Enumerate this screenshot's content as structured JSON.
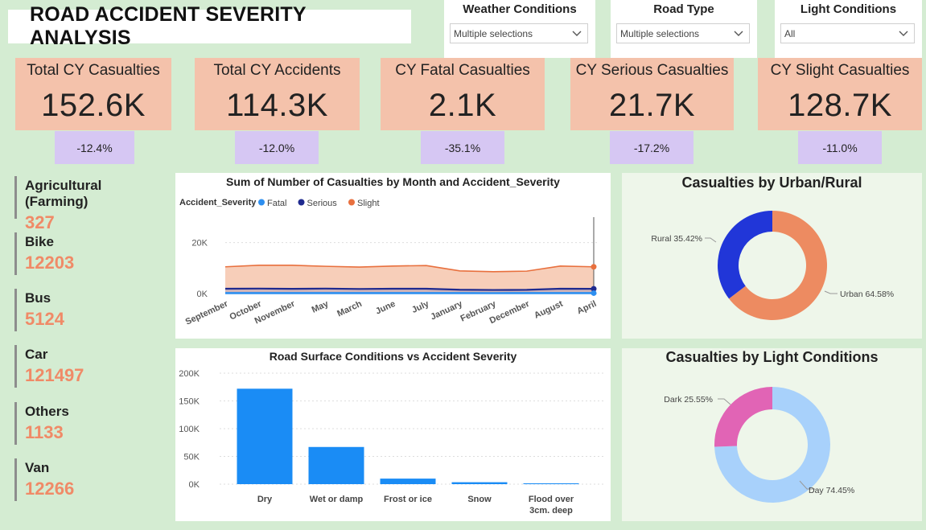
{
  "title": "ROAD ACCIDENT SEVERITY ANALYSIS",
  "slicers": [
    {
      "title": "Weather Conditions",
      "value": "Multiple selections"
    },
    {
      "title": "Road Type",
      "value": "Multiple selections"
    },
    {
      "title": "Light Conditions",
      "value": "All"
    }
  ],
  "kpis": [
    {
      "title": "Total CY Casualties",
      "value": "152.6K",
      "delta": "-12.4%"
    },
    {
      "title": "Total CY Accidents",
      "value": "114.3K",
      "delta": "-12.0%"
    },
    {
      "title": "CY Fatal Casualties",
      "value": "2.1K",
      "delta": "-35.1%"
    },
    {
      "title": "CY Serious Casualties",
      "value": "21.7K",
      "delta": "-17.2%"
    },
    {
      "title": "CY Slight Casualties",
      "value": "128.7K",
      "delta": "-11.0%"
    }
  ],
  "vehicles": [
    {
      "label": "Agricultural (Farming)",
      "value": "327"
    },
    {
      "label": "Bike",
      "value": "12203"
    },
    {
      "label": "Bus",
      "value": "5124"
    },
    {
      "label": "Car",
      "value": "121497"
    },
    {
      "label": "Others",
      "value": "1133"
    },
    {
      "label": "Van",
      "value": "12266"
    }
  ],
  "colors": {
    "fatal": "#2d8ff0",
    "serious": "#1f2a8f",
    "slight": "#e8703e",
    "slight_fill": "#f6c9b1",
    "bar": "#1a8cf5",
    "urban": "#ed8b61",
    "rural": "#2136d8",
    "day": "#a8d1fb",
    "dark": "#e164b5"
  },
  "chart_data": [
    {
      "type": "area",
      "title": "Sum of Number of Casualties by Month and Accident_Severity",
      "legend_title": "Accident_Severity",
      "categories": [
        "September",
        "October",
        "November",
        "May",
        "March",
        "June",
        "July",
        "January",
        "February",
        "December",
        "August",
        "April"
      ],
      "y_ticks": [
        "0K",
        "20K"
      ],
      "ylim": [
        0,
        30000
      ],
      "series": [
        {
          "name": "Fatal",
          "values": [
            180,
            190,
            185,
            180,
            175,
            180,
            185,
            170,
            160,
            165,
            180,
            175
          ]
        },
        {
          "name": "Serious",
          "values": [
            1900,
            1950,
            1850,
            1950,
            1800,
            1900,
            1900,
            1500,
            1400,
            1450,
            1900,
            1850
          ]
        },
        {
          "name": "Slight",
          "values": [
            10500,
            11100,
            11100,
            10700,
            10400,
            10800,
            11000,
            8900,
            8600,
            8800,
            10800,
            10500
          ]
        }
      ]
    },
    {
      "type": "bar",
      "title": "Road Surface Conditions vs Accident Severity",
      "categories": [
        "Dry",
        "Wet or damp",
        "Frost or ice",
        "Snow",
        "Flood over 3cm. deep"
      ],
      "values": [
        172000,
        67000,
        10000,
        3500,
        1500
      ],
      "y_ticks": [
        "0K",
        "50K",
        "100K",
        "150K",
        "200K"
      ],
      "ylim": [
        0,
        200000
      ]
    },
    {
      "type": "pie",
      "title": "Casualties by Urban/Rural",
      "slices": [
        {
          "name": "Urban",
          "value": 64.58,
          "label": "Urban 64.58%"
        },
        {
          "name": "Rural",
          "value": 35.42,
          "label": "Rural 35.42%"
        }
      ]
    },
    {
      "type": "pie",
      "title": "Casualties by Light Conditions",
      "slices": [
        {
          "name": "Day",
          "value": 74.45,
          "label": "Day 74.45%"
        },
        {
          "name": "Dark",
          "value": 25.55,
          "label": "Dark 25.55%"
        }
      ]
    }
  ]
}
